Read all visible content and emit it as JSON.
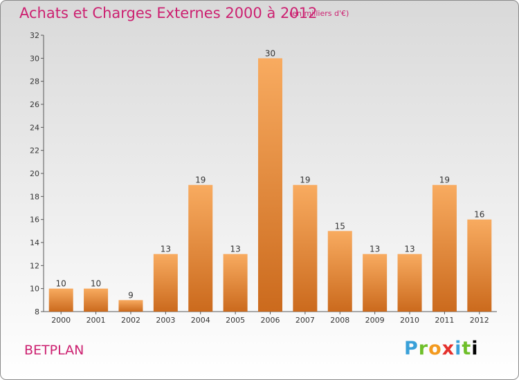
{
  "title": "Achats et Charges Externes 2000 à 2012",
  "unit_note": "(en milliers d'€)",
  "commune": "BETPLAN",
  "logo_text": "Proxiti",
  "colors": {
    "bar_light": "#f7a75a",
    "bar_dark": "#cc6a1c",
    "title": "#cc2070"
  },
  "chart_data": {
    "type": "bar",
    "categories": [
      "2000",
      "2001",
      "2002",
      "2003",
      "2004",
      "2005",
      "2006",
      "2007",
      "2008",
      "2009",
      "2010",
      "2011",
      "2012"
    ],
    "values": [
      10,
      10,
      9,
      13,
      19,
      13,
      30,
      19,
      15,
      13,
      13,
      19,
      16
    ],
    "ylim": [
      8,
      32
    ],
    "yticks": [
      8,
      10,
      12,
      14,
      16,
      18,
      20,
      22,
      24,
      26,
      28,
      30,
      32
    ],
    "grid": false,
    "legend": "none"
  }
}
